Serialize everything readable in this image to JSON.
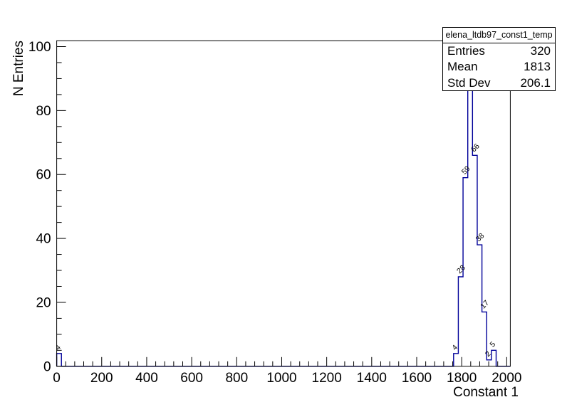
{
  "stats_box": {
    "title": "elena_ltdb97_const1_temp",
    "rows": [
      {
        "label": "Entries",
        "value": "320"
      },
      {
        "label": "Mean",
        "value": "1813"
      },
      {
        "label": "Std Dev",
        "value": "206.1"
      }
    ]
  },
  "chart_data": {
    "type": "bar",
    "style": "root-step-histogram-outline",
    "title": "elena_ltdb97_const1_temp",
    "xlabel": "Constant 1",
    "ylabel": "N Entries",
    "xlim": [
      0,
      2016
    ],
    "ylim": [
      0,
      101.85
    ],
    "bin_width": 21,
    "bins": [
      {
        "x": 0,
        "count": 4
      },
      {
        "x": 1764,
        "count": 4
      },
      {
        "x": 1785,
        "count": 28
      },
      {
        "x": 1806,
        "count": 59
      },
      {
        "x": 1827,
        "count": 97
      },
      {
        "x": 1848,
        "count": 66
      },
      {
        "x": 1869,
        "count": 38
      },
      {
        "x": 1890,
        "count": 17
      },
      {
        "x": 1911,
        "count": 2
      },
      {
        "x": 1932,
        "count": 5
      }
    ],
    "bin_labels_visible": [
      "4",
      "4",
      "28",
      "59",
      "66",
      "38",
      "17",
      "2",
      "5"
    ],
    "x_major_ticks": [
      0,
      200,
      400,
      600,
      800,
      1000,
      1200,
      1400,
      1600,
      1800,
      2000
    ],
    "x_minor_step": 40,
    "y_major_ticks": [
      0,
      20,
      40,
      60,
      80,
      100
    ],
    "y_minor_step": 5,
    "grid": false,
    "legend_position": "none",
    "entries": 320,
    "mean": 1813,
    "std_dev": 206.1,
    "line_color": "#000099",
    "frame_color": "#000000",
    "text_color": "#000000",
    "background_color": "#ffffff"
  }
}
